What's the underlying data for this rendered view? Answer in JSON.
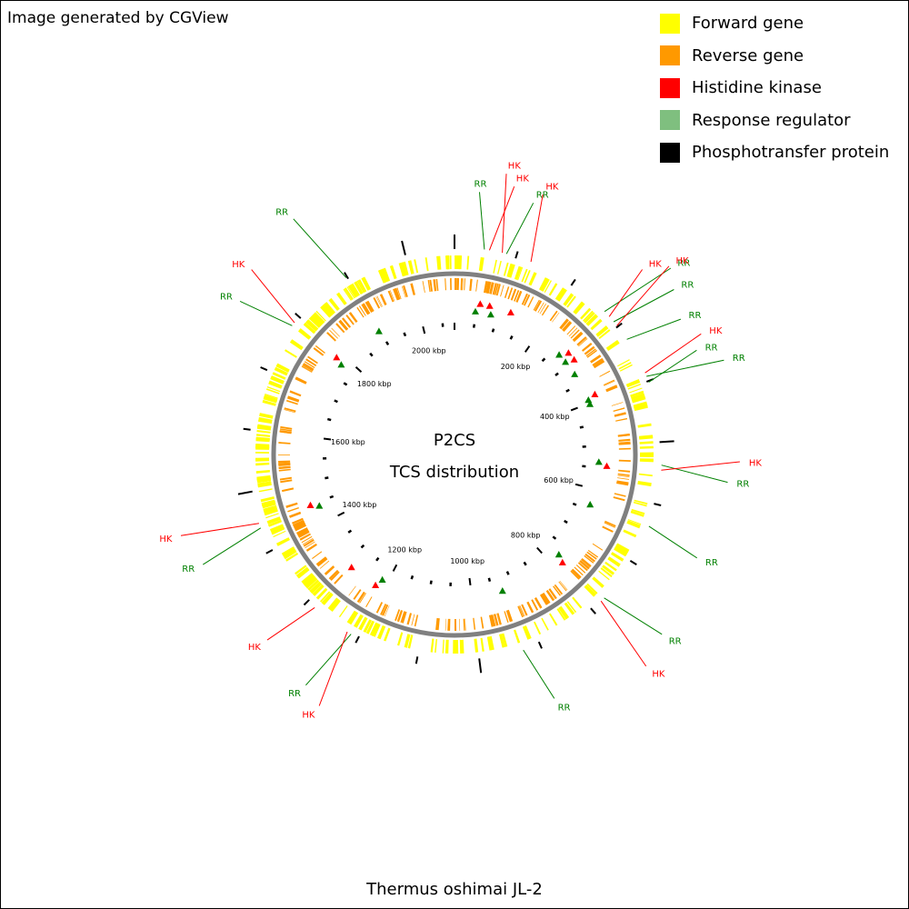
{
  "credit": "Image generated by CGView",
  "legend": [
    {
      "label": "Forward gene",
      "color": "#ffff00"
    },
    {
      "label": "Reverse gene",
      "color": "#ff9900"
    },
    {
      "label": "Histidine kinase",
      "color": "#ff0000"
    },
    {
      "label": "Response regulator",
      "color": "#7fbf7f"
    },
    {
      "label": "Phosphotransfer protein",
      "color": "#000000"
    }
  ],
  "map": {
    "center_title": "P2CS",
    "center_subtitle": "TCS distribution",
    "organism": "Thermus oshimai JL-2",
    "genome_kbp": 2080,
    "colors": {
      "forward": "#ffff00",
      "reverse": "#ff9900",
      "backbone": "#808080",
      "hk": "#ff0000",
      "rr": "#008000",
      "tick": "#000000"
    },
    "scale_labels": [
      {
        "kbp": 200,
        "text": "200 kbp"
      },
      {
        "kbp": 400,
        "text": "400 kbp"
      },
      {
        "kbp": 600,
        "text": "600 kbp"
      },
      {
        "kbp": 800,
        "text": "800 kbp"
      },
      {
        "kbp": 1000,
        "text": "1000 kbp"
      },
      {
        "kbp": 1200,
        "text": "1200 kbp"
      },
      {
        "kbp": 1400,
        "text": "1400 kbp"
      },
      {
        "kbp": 1600,
        "text": "1600 kbp"
      },
      {
        "kbp": 1800,
        "text": "1800 kbp"
      },
      {
        "kbp": 2000,
        "text": "2000 kbp"
      }
    ],
    "features": [
      {
        "type": "RR",
        "kbp": 48
      },
      {
        "type": "HK",
        "kbp": 56
      },
      {
        "type": "HK",
        "kbp": 77
      },
      {
        "type": "RR",
        "kbp": 84
      },
      {
        "type": "HK",
        "kbp": 125
      },
      {
        "type": "RR",
        "kbp": 268
      },
      {
        "type": "HK",
        "kbp": 279
      },
      {
        "type": "RR",
        "kbp": 290
      },
      {
        "type": "HK",
        "kbp": 298
      },
      {
        "type": "RR",
        "kbp": 325
      },
      {
        "type": "HK",
        "kbp": 386
      },
      {
        "type": "RR",
        "kbp": 392
      },
      {
        "type": "RR",
        "kbp": 402
      },
      {
        "type": "RR",
        "kbp": 537
      },
      {
        "type": "HK",
        "kbp": 545
      },
      {
        "type": "RR",
        "kbp": 637
      },
      {
        "type": "RR",
        "kbp": 773
      },
      {
        "type": "HK",
        "kbp": 780
      },
      {
        "type": "RR",
        "kbp": 928
      },
      {
        "type": "RR",
        "kbp": 1213
      },
      {
        "type": "HK",
        "kbp": 1220
      },
      {
        "type": "HK",
        "kbp": 1285
      },
      {
        "type": "RR",
        "kbp": 1440
      },
      {
        "type": "HK",
        "kbp": 1448
      },
      {
        "type": "RR",
        "kbp": 1782
      },
      {
        "type": "HK",
        "kbp": 1788
      },
      {
        "type": "RR",
        "kbp": 1898
      }
    ]
  }
}
